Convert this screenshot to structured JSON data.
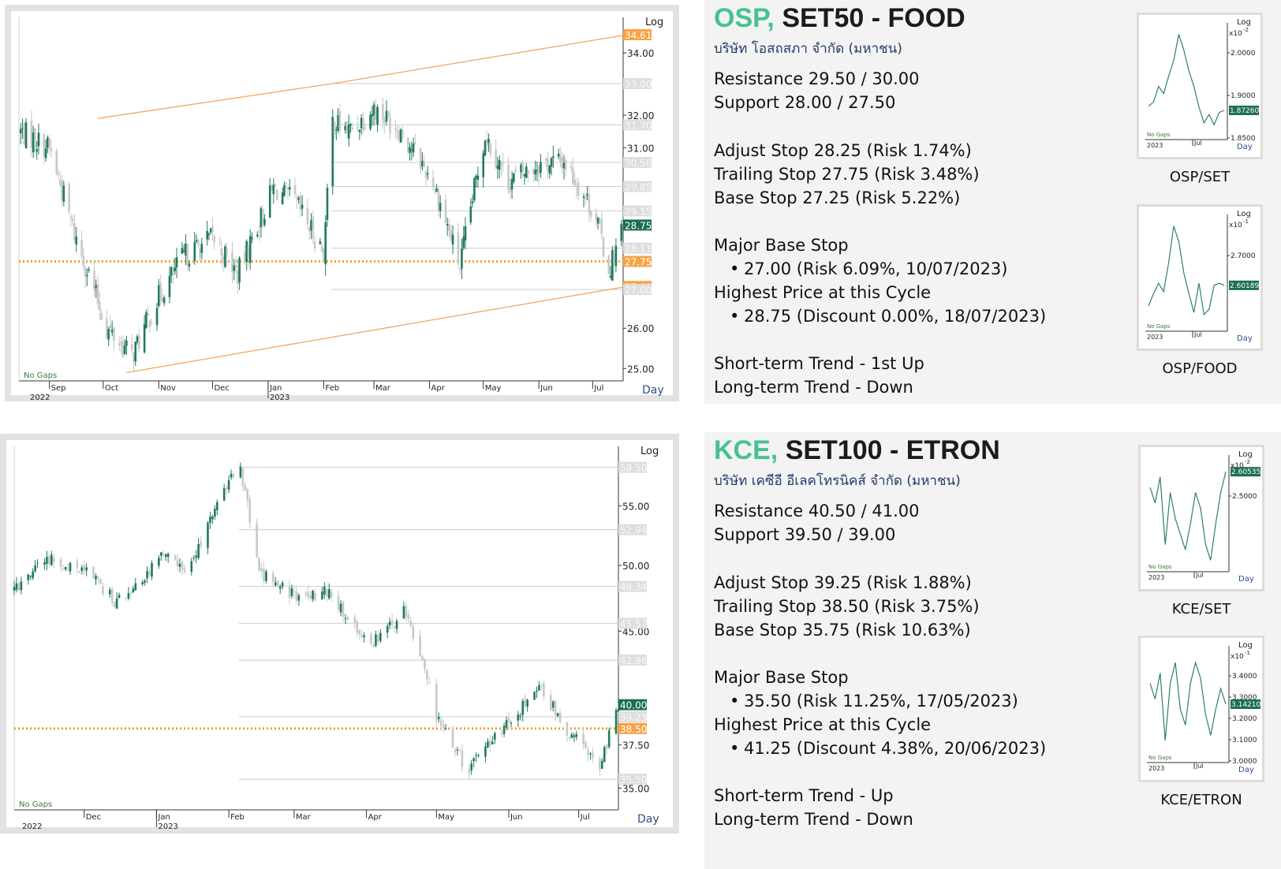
{
  "charts": [
    {
      "id": "osp",
      "scale_label": "Log",
      "period_label": "Day",
      "gaps_label": "No Gaps",
      "years": [
        "2022",
        "2023"
      ],
      "months": [
        "Sep",
        "Oct",
        "Nov",
        "Dec",
        "Jan",
        "Feb",
        "Mar",
        "Apr",
        "May",
        "Jun",
        "Jul"
      ],
      "y_ticks": [
        "34.00",
        "32.00",
        "31.00",
        "26.00",
        "25.00"
      ],
      "level_tags": [
        {
          "text": "34.61",
          "kind": "orange"
        },
        {
          "text": "33.00",
          "kind": "gray"
        },
        {
          "text": "31.70",
          "kind": "gray"
        },
        {
          "text": "30.56",
          "kind": "gray"
        },
        {
          "text": "29.85",
          "kind": "gray"
        },
        {
          "text": "29.15",
          "kind": "gray"
        },
        {
          "text": "28.75",
          "kind": "green"
        },
        {
          "text": "28.11",
          "kind": "gray"
        },
        {
          "text": "27.75",
          "kind": "orange"
        },
        {
          "text": "27.08",
          "kind": "orange"
        },
        {
          "text": "27.00",
          "kind": "gray"
        }
      ],
      "colors": {
        "up": "#1f7a5a",
        "down": "#c8c8c8",
        "trend": "#f5a55c",
        "stop": "#f39a2f"
      }
    },
    {
      "id": "kce",
      "scale_label": "Log",
      "period_label": "Day",
      "gaps_label": "No Gaps",
      "years": [
        "2022",
        "2023"
      ],
      "months": [
        "Dec",
        "Jan",
        "Feb",
        "Mar",
        "Apr",
        "May",
        "Jun",
        "Jul"
      ],
      "y_ticks": [
        "55.00",
        "50.00",
        "45.00",
        "37.50",
        "35.00"
      ],
      "level_tags": [
        {
          "text": "58.50",
          "kind": "gray"
        },
        {
          "text": "52.94",
          "kind": "gray"
        },
        {
          "text": "48.34",
          "kind": "gray"
        },
        {
          "text": "45.57",
          "kind": "gray"
        },
        {
          "text": "42.96",
          "kind": "gray"
        },
        {
          "text": "40.00",
          "kind": "green"
        },
        {
          "text": "39.23",
          "kind": "gray"
        },
        {
          "text": "38.50",
          "kind": "orange"
        },
        {
          "text": "35.50",
          "kind": "gray"
        }
      ],
      "colors": {
        "up": "#1f7a5a",
        "down": "#c8c8c8",
        "trend": "#f5a55c",
        "stop": "#f39a2f"
      }
    }
  ],
  "panels": [
    {
      "ticker": "OSP,",
      "sector": "SET50 - FOOD",
      "company": "บริษัท โอสถสภา จำกัด (มหาชน)",
      "resistance": "Resistance 29.50 / 30.00",
      "support": "Support 28.00 / 27.50",
      "adjust_stop": "Adjust Stop 28.25 (Risk 1.74%)",
      "trailing_stop": "Trailing Stop 27.75 (Risk 3.48%)",
      "base_stop": "Base Stop 27.25 (Risk 5.22%)",
      "major_base_stop_label": "Major Base Stop",
      "major_base_stop_value": "27.00 (Risk 6.09%, 10/07/2023)",
      "highest_price_label": "Highest Price at this Cycle",
      "highest_price_value": "28.75 (Discount 0.00%, 18/07/2023)",
      "short_term_trend": "Short-term Trend - 1st Up",
      "long_term_trend": "Long-term Trend - Down",
      "mini_charts": [
        {
          "label": "OSP/SET",
          "scale_label": "Log",
          "exponent": "x10",
          "exp_power": "-2",
          "ticks": [
            "2.0000",
            "1.9000",
            "1.8500"
          ],
          "value_tag": "1.87260",
          "gaps_label": "No Gaps",
          "year": "2023",
          "month": "Jul",
          "period_label": "Day"
        },
        {
          "label": "OSP/FOOD",
          "scale_label": "Log",
          "exponent": "x10",
          "exp_power": "-1",
          "ticks": [
            "2.7000"
          ],
          "value_tag": "2.60189",
          "gaps_label": "No Gaps",
          "year": "2023",
          "month": "Jul",
          "period_label": "Day"
        }
      ]
    },
    {
      "ticker": "KCE,",
      "sector": "SET100 - ETRON",
      "company": "บริษัท เคซีอี อีเลคโทรนิคส์ จำกัด (มหาชน)",
      "resistance": "Resistance 40.50 / 41.00",
      "support": "Support 39.50 / 39.00",
      "adjust_stop": "Adjust Stop 39.25 (Risk 1.88%)",
      "trailing_stop": "Trailing Stop 38.50 (Risk 3.75%)",
      "base_stop": "Base Stop 35.75 (Risk 10.63%)",
      "major_base_stop_label": "Major Base Stop",
      "major_base_stop_value": "35.50 (Risk 11.25%, 17/05/2023)",
      "highest_price_label": "Highest Price at this Cycle",
      "highest_price_value": "41.25 (Discount 4.38%, 20/06/2023)",
      "short_term_trend": "Short-term Trend - Up",
      "long_term_trend": "Long-term Trend - Down",
      "mini_charts": [
        {
          "label": "KCE/SET",
          "scale_label": "Log",
          "exponent": "x10",
          "exp_power": "-2",
          "ticks": [
            "2.5000"
          ],
          "value_tag": "2.60535",
          "gaps_label": "No Gaps",
          "year": "2023",
          "month": "Jul",
          "period_label": "Day"
        },
        {
          "label": "KCE/ETRON",
          "scale_label": "Log",
          "exponent": "x10",
          "exp_power": "-1",
          "ticks": [
            "3.4000",
            "3.3000",
            "3.2000",
            "3.1000",
            "3.0000"
          ],
          "value_tag": "3.14210",
          "gaps_label": "No Gaps",
          "year": "2023",
          "month": "Jul",
          "period_label": "Day"
        }
      ]
    }
  ],
  "chart_data": [
    {
      "type": "candlestick",
      "scale": "log",
      "ylim": [
        24.7,
        35.2
      ],
      "x_range": [
        "2022-08-15",
        "2023-07-18"
      ],
      "x": [
        "2022-08-16",
        "2022-09-01",
        "2022-09-15",
        "2022-10-03",
        "2022-10-17",
        "2022-11-01",
        "2022-11-15",
        "2022-12-01",
        "2022-12-15",
        "2023-01-04",
        "2023-01-16",
        "2023-02-01",
        "2023-02-06",
        "2023-02-15",
        "2023-03-01",
        "2023-03-15",
        "2023-04-03",
        "2023-04-18",
        "2023-05-02",
        "2023-05-15",
        "2023-06-01",
        "2023-06-15",
        "2023-07-03",
        "2023-07-10",
        "2023-07-18"
      ],
      "close": [
        31.5,
        31.0,
        28.5,
        26.0,
        25.3,
        26.8,
        27.9,
        28.4,
        27.4,
        29.8,
        29.4,
        28.0,
        31.8,
        31.5,
        32.2,
        31.6,
        30.0,
        27.6,
        31.4,
        30.0,
        30.5,
        30.6,
        29.0,
        27.5,
        28.75
      ],
      "level_lines": [
        33.0,
        31.7,
        30.56,
        29.85,
        29.15,
        28.11,
        27.0
      ],
      "stop_line": 27.75,
      "trend_upper": [
        [
          "2022-09-28",
          31.9
        ],
        [
          "2023-02-06",
          33.0
        ],
        [
          "2023-07-20",
          34.61
        ]
      ],
      "trend_lower": [
        [
          "2022-10-14",
          24.9
        ],
        [
          "2023-07-20",
          27.08
        ]
      ]
    },
    {
      "type": "candlestick",
      "scale": "log",
      "ylim": [
        33.8,
        60.5
      ],
      "x_range": [
        "2022-11-01",
        "2023-07-18"
      ],
      "x": [
        "2022-11-01",
        "2022-11-15",
        "2022-12-01",
        "2022-12-15",
        "2023-01-03",
        "2023-01-16",
        "2023-02-01",
        "2023-02-06",
        "2023-02-14",
        "2023-03-01",
        "2023-03-15",
        "2023-04-03",
        "2023-04-18",
        "2023-05-02",
        "2023-05-15",
        "2023-06-01",
        "2023-06-15",
        "2023-06-26",
        "2023-07-10",
        "2023-07-18"
      ],
      "close": [
        48.0,
        50.5,
        49.5,
        47.0,
        50.5,
        49.8,
        57.5,
        58.5,
        49.5,
        47.5,
        48.0,
        44.0,
        46.5,
        38.8,
        36.0,
        39.0,
        41.0,
        38.5,
        36.2,
        40.0
      ],
      "level_lines": [
        58.5,
        52.94,
        48.34,
        45.57,
        42.96,
        39.23,
        35.5
      ],
      "stop_line": 38.5
    }
  ]
}
